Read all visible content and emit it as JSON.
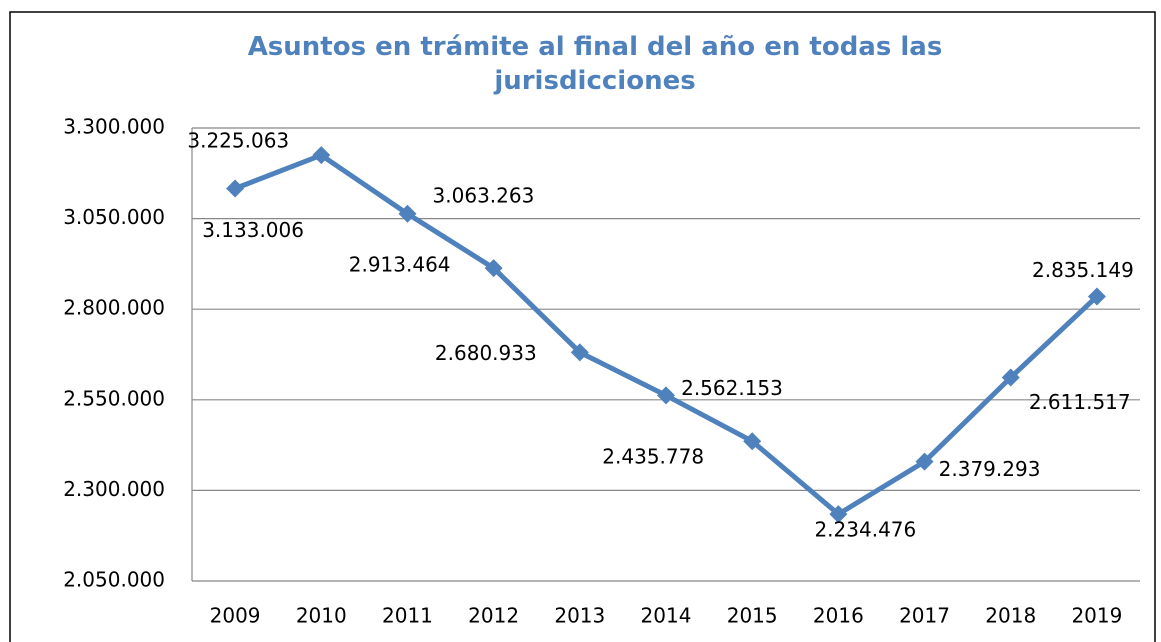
{
  "chart_data": {
    "type": "line",
    "title": "Asuntos en trámite al final del año en todas las jurisdicciones",
    "categories": [
      "2009",
      "2010",
      "2011",
      "2012",
      "2013",
      "2014",
      "2015",
      "2016",
      "2017",
      "2018",
      "2019"
    ],
    "series": [
      {
        "name": "Asuntos en trámite",
        "color": "#4F81BD",
        "values": [
          3133006,
          3225063,
          3063263,
          2913464,
          2680933,
          2562153,
          2435778,
          2234476,
          2379293,
          2611517,
          2835149
        ],
        "value_labels": [
          "3.133.006",
          "3.225.063",
          "3.063.263",
          "2.913.464",
          "2.680.933",
          "2.562.153",
          "2.435.778",
          "2.234.476",
          "2.379.293",
          "2.611.517",
          "2.835.149"
        ]
      }
    ],
    "ylim": [
      2050000,
      3300000
    ],
    "yticks": [
      {
        "value": 2050000,
        "label": "2.050.000"
      },
      {
        "value": 2300000,
        "label": "2.300.000"
      },
      {
        "value": 2550000,
        "label": "2.550.000"
      },
      {
        "value": 2800000,
        "label": "2.800.000"
      },
      {
        "value": 3050000,
        "label": "3.050.000"
      },
      {
        "value": 3300000,
        "label": "3.300.000"
      }
    ],
    "grid": true
  }
}
